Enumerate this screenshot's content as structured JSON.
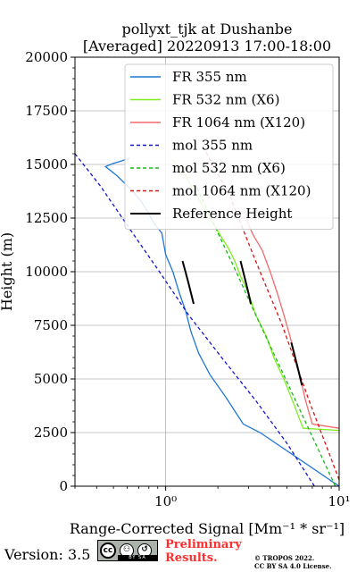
{
  "chart_data": {
    "type": "line",
    "title_line1": "pollyxt_tjk at Dushanbe",
    "title_line2": "[Averaged] 20220913 17:00-18:00",
    "xlabel": "Range-Corrected Signal [Mm⁻¹ * sr⁻¹]",
    "ylabel": "Height (m)",
    "xscale": "log",
    "xlim": [
      0.3,
      10
    ],
    "ylim": [
      0,
      20000
    ],
    "yticks": [
      0,
      2500,
      5000,
      7500,
      10000,
      12500,
      15000,
      17500,
      20000
    ],
    "yticklabels": [
      "0",
      "2500",
      "5000",
      "7500",
      "10000",
      "12500",
      "15000",
      "17500",
      "20000"
    ],
    "xticks": [
      1,
      10
    ],
    "xticklabels": [
      "10⁰",
      "10¹"
    ],
    "grid": true,
    "legend_position": "upper right",
    "series": [
      {
        "name": "FR 355 nm",
        "color": "#1f77d4",
        "style": "solid",
        "x": [
          10,
          3.5,
          2.8,
          2.2,
          1.8,
          1.55,
          1.4,
          1.3,
          1.2,
          1.1,
          1.0,
          0.95,
          0.85,
          0.8,
          0.72,
          0.62,
          0.52,
          0.45,
          0.5,
          0.55,
          0.62
        ],
        "y": [
          0,
          2500,
          2900,
          4200,
          5200,
          6200,
          7200,
          8200,
          9000,
          10000,
          10800,
          11800,
          12300,
          12700,
          13300,
          13900,
          14500,
          14900,
          15050,
          15150,
          15300
        ]
      },
      {
        "name": "FR 532 nm (X6)",
        "color": "#7fee1f",
        "style": "solid",
        "x": [
          10,
          6.2,
          5.5,
          4.8,
          4.2,
          3.8,
          3.3,
          3.0,
          2.7,
          2.5,
          2.3,
          2.1,
          1.9,
          1.7,
          1.55,
          1.3,
          1.1
        ],
        "y": [
          2600,
          2700,
          3800,
          5000,
          6000,
          7000,
          8000,
          9000,
          9800,
          10500,
          11100,
          11600,
          12200,
          12800,
          13400,
          14500,
          15200
        ]
      },
      {
        "name": "FR 1064 nm (X120)",
        "color": "#f26a6a",
        "style": "solid",
        "x": [
          10,
          7.0,
          6.4,
          6.0,
          5.6,
          5.2,
          4.8,
          4.4,
          4.0,
          3.6,
          3.2,
          3.0,
          2.9
        ],
        "y": [
          2700,
          2900,
          4000,
          5000,
          6000,
          7000,
          8000,
          9000,
          10000,
          11000,
          11700,
          12200,
          12800
        ]
      },
      {
        "name": "mol 355 nm",
        "color": "#1515d0",
        "style": "dashed",
        "x": [
          7.2,
          5.0,
          3.3,
          2.1,
          1.35,
          0.92,
          0.62,
          0.42,
          0.3
        ],
        "y": [
          0,
          2000,
          4000,
          6000,
          8000,
          10000,
          12000,
          14000,
          15500
        ]
      },
      {
        "name": "mol 532 nm (X6)",
        "color": "#17b817",
        "style": "dashed",
        "x": [
          9.5,
          7.3,
          5.6,
          4.3,
          3.3,
          2.55,
          1.95,
          1.5
        ],
        "y": [
          0,
          2000,
          4000,
          6000,
          8000,
          10000,
          12000,
          14000
        ]
      },
      {
        "name": "mol 1064 nm (X120)",
        "color": "#d81414",
        "style": "dashed",
        "x": [
          10,
          6.7,
          4.7,
          3.3,
          2.35,
          1.65
        ],
        "y": [
          300,
          4000,
          7500,
          10500,
          13500,
          15800
        ]
      },
      {
        "name": "Reference Height",
        "color": "#000000",
        "style": "solid",
        "segments": [
          {
            "x": [
              1.45,
              1.4,
              1.35,
              1.3,
              1.25
            ],
            "y": [
              8500,
              9000,
              9500,
              10000,
              10500
            ]
          },
          {
            "x": [
              3.1,
              3.0,
              2.9,
              2.8,
              2.7
            ],
            "y": [
              8500,
              9000,
              9500,
              10000,
              10500
            ]
          },
          {
            "x": [
              6.1,
              5.9,
              5.7,
              5.5,
              5.3
            ],
            "y": [
              4700,
              5200,
              5700,
              6200,
              6700
            ]
          }
        ]
      }
    ]
  },
  "footer": {
    "version": "Version: 3.5",
    "badge": "cc",
    "badge_strip": "BY  SA",
    "preliminary_line1": "Preliminary",
    "preliminary_line2": "Results.",
    "copyright": "© TROPOS 2022.",
    "license": "CC BY SA 4.0 License."
  }
}
